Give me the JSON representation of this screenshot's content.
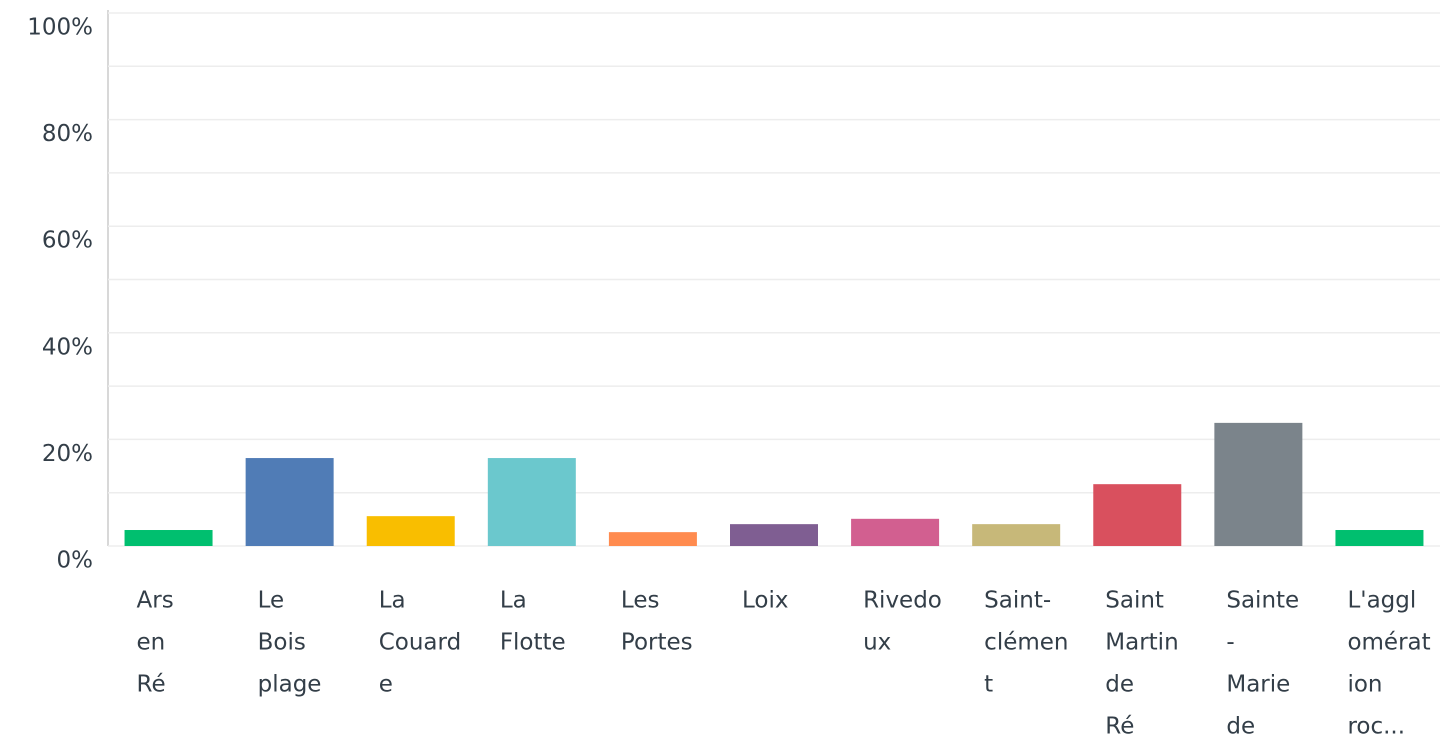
{
  "chart_data": {
    "type": "bar",
    "categories": [
      [
        "Ars",
        "en",
        "Ré"
      ],
      [
        "Le",
        "Bois",
        "plage"
      ],
      [
        "La",
        "Couard",
        "e"
      ],
      [
        "La",
        "Flotte"
      ],
      [
        "Les",
        "Portes"
      ],
      [
        "Loix"
      ],
      [
        "Rivedo",
        "ux"
      ],
      [
        "Saint-",
        "clémen",
        "t"
      ],
      [
        "Saint",
        "Martin",
        "de",
        "Ré"
      ],
      [
        "Sainte",
        "-",
        "Marie",
        "de"
      ],
      [
        "L'aggl",
        "omérat",
        "ion",
        "roc..."
      ]
    ],
    "values": [
      3.0,
      16.5,
      5.6,
      16.5,
      2.6,
      4.1,
      5.1,
      4.1,
      11.6,
      23.1,
      3.0
    ],
    "colors": [
      "#00bf6f",
      "#507cb6",
      "#f9be00",
      "#6bc8cd",
      "#ff8b4f",
      "#7f5e92",
      "#d25f90",
      "#c7b879",
      "#d9505e",
      "#7b848b",
      "#00bf6f"
    ],
    "ylim": [
      0,
      100
    ],
    "yticks": [
      {
        "value": 0,
        "label": "0%"
      },
      {
        "value": 20,
        "label": "20%"
      },
      {
        "value": 40,
        "label": "40%"
      },
      {
        "value": 60,
        "label": "60%"
      },
      {
        "value": 80,
        "label": "80%"
      },
      {
        "value": 100,
        "label": "100%"
      }
    ],
    "minor_yticks": [
      10,
      30,
      50,
      70,
      90
    ],
    "grid": true
  }
}
